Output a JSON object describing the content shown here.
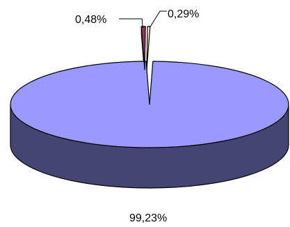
{
  "chart_data": {
    "type": "pie",
    "style": "3d-exploded",
    "slices": [
      {
        "label": "99,23%",
        "value": 99.23,
        "color": "#9999ff"
      },
      {
        "label": "0,48%",
        "value": 0.48,
        "color": "#993366"
      },
      {
        "label": "0,29%",
        "value": 0.29,
        "color": "#ffffcc"
      }
    ]
  }
}
